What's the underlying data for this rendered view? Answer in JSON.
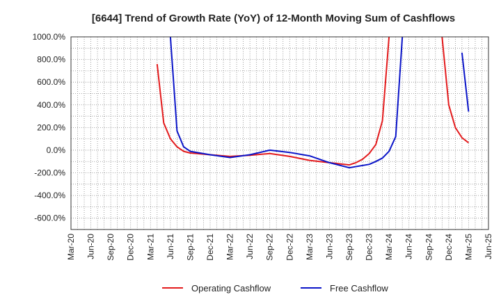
{
  "chart_data": {
    "type": "line",
    "title": "[6644]  Trend of Growth Rate (YoY) of 12-Month Moving Sum of Cashflows",
    "xlabel": "",
    "ylabel": "",
    "x_ticks": [
      "Mar-20",
      "Jun-20",
      "Sep-20",
      "Dec-20",
      "Mar-21",
      "Jun-21",
      "Sep-21",
      "Dec-21",
      "Mar-22",
      "Jun-22",
      "Sep-22",
      "Dec-22",
      "Mar-23",
      "Jun-23",
      "Sep-23",
      "Dec-23",
      "Mar-24",
      "Jun-24",
      "Sep-24",
      "Dec-24",
      "Mar-25",
      "Jun-25"
    ],
    "y_ticks": [
      "1000.0%",
      "800.0%",
      "600.0%",
      "400.0%",
      "200.0%",
      "0.0%",
      "-200.0%",
      "-400.0%",
      "-600.0%"
    ],
    "ylim": [
      -700,
      1000
    ],
    "grid": true,
    "legend_position": "bottom",
    "series": [
      {
        "name": "Operating Cashflow",
        "color": "#e31a1c",
        "points": [
          [
            "2021-04",
            760
          ],
          [
            "2021-05",
            240
          ],
          [
            "2021-06",
            100
          ],
          [
            "2021-07",
            30
          ],
          [
            "2021-08",
            -10
          ],
          [
            "2021-09",
            -25
          ],
          [
            "2021-12",
            -40
          ],
          [
            "2022-03",
            -55
          ],
          [
            "2022-06",
            -45
          ],
          [
            "2022-09",
            -30
          ],
          [
            "2022-12",
            -55
          ],
          [
            "2023-03",
            -90
          ],
          [
            "2023-06",
            -110
          ],
          [
            "2023-09",
            -130
          ],
          [
            "2023-10",
            -110
          ],
          [
            "2023-11",
            -80
          ],
          [
            "2023-12",
            -30
          ],
          [
            "2024-01",
            50
          ],
          [
            "2024-02",
            260
          ],
          [
            "2024-03",
            1000
          ]
        ]
      },
      {
        "name": "Free Cashflow",
        "color": "#0a14c8",
        "points": [
          [
            "2021-06",
            1000
          ],
          [
            "2021-07",
            170
          ],
          [
            "2021-08",
            30
          ],
          [
            "2021-09",
            -10
          ],
          [
            "2021-12",
            -40
          ],
          [
            "2022-03",
            -65
          ],
          [
            "2022-06",
            -40
          ],
          [
            "2022-09",
            0
          ],
          [
            "2022-12",
            -20
          ],
          [
            "2023-03",
            -50
          ],
          [
            "2023-06",
            -110
          ],
          [
            "2023-09",
            -155
          ],
          [
            "2023-12",
            -125
          ],
          [
            "2024-01",
            -100
          ],
          [
            "2024-02",
            -70
          ],
          [
            "2024-03",
            -10
          ],
          [
            "2024-04",
            120
          ],
          [
            "2024-05",
            1000
          ]
        ]
      },
      {
        "name": "Operating Cashflow",
        "color": "#e31a1c",
        "points": [
          [
            "2024-11",
            1000
          ],
          [
            "2024-12",
            400
          ],
          [
            "2025-01",
            200
          ],
          [
            "2025-02",
            110
          ],
          [
            "2025-03",
            65
          ]
        ]
      },
      {
        "name": "Free Cashflow",
        "color": "#0a14c8",
        "points": [
          [
            "2025-02",
            860
          ],
          [
            "2025-03",
            340
          ]
        ]
      }
    ],
    "legend": [
      {
        "label": "Operating Cashflow",
        "color": "#e31a1c"
      },
      {
        "label": "Free Cashflow",
        "color": "#0a14c8"
      }
    ]
  }
}
